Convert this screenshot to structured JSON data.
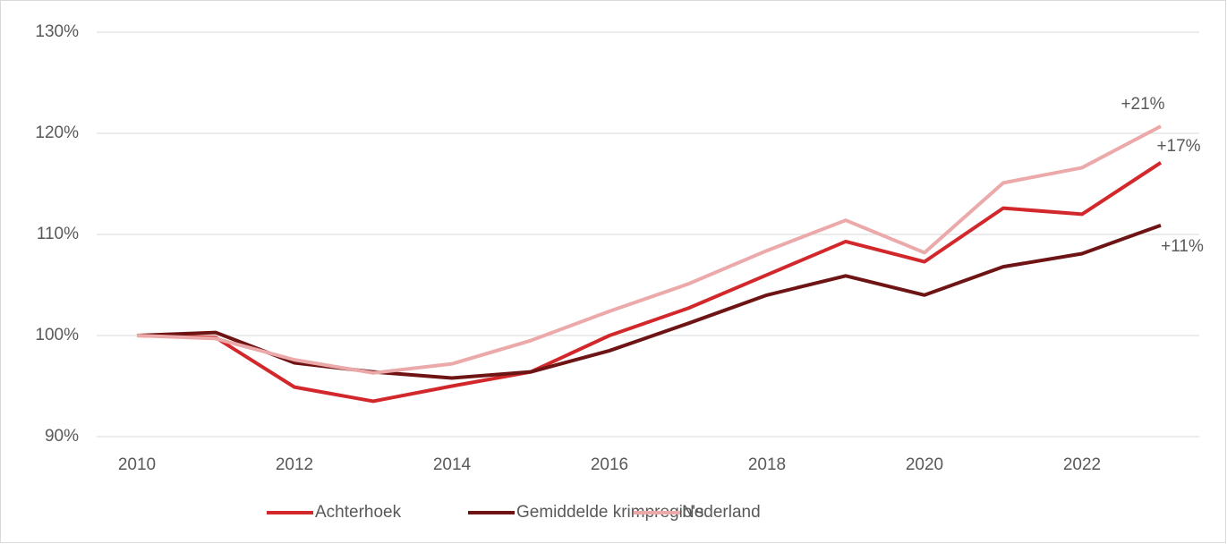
{
  "chart_data": {
    "type": "line",
    "x": [
      2010,
      2011,
      2012,
      2013,
      2014,
      2015,
      2016,
      2017,
      2018,
      2019,
      2020,
      2021,
      2022,
      2023
    ],
    "xlim": [
      2010,
      2023
    ],
    "xticks": [
      2010,
      2012,
      2014,
      2016,
      2018,
      2020,
      2022
    ],
    "ylim": [
      90,
      130
    ],
    "yticks": [
      {
        "value": 90,
        "label": "90%"
      },
      {
        "value": 100,
        "label": "100%"
      },
      {
        "value": 110,
        "label": "110%"
      },
      {
        "value": 120,
        "label": "120%"
      },
      {
        "value": 130,
        "label": "130%"
      }
    ],
    "grid": true,
    "legend": "bottom",
    "series": [
      {
        "name": "Achterhoek",
        "color": "#d2282c",
        "values": [
          100,
          99.8,
          94.9,
          93.5,
          95.0,
          96.4,
          100,
          102.7,
          106.0,
          109.3,
          107.3,
          112.6,
          112.0,
          117.1
        ],
        "end_label": "+17%"
      },
      {
        "name": "Gemiddelde krimpregio's",
        "color": "#6e1414",
        "values": [
          100,
          100.3,
          97.3,
          96.4,
          95.8,
          96.4,
          98.5,
          101.2,
          104.0,
          105.9,
          104.0,
          106.8,
          108.1,
          110.9
        ],
        "end_label": "+11%"
      },
      {
        "name": "Nederland",
        "color": "#eba9aa",
        "values": [
          100,
          99.7,
          97.6,
          96.3,
          97.2,
          99.5,
          102.4,
          105.1,
          108.4,
          111.4,
          108.2,
          115.1,
          116.6,
          120.7
        ],
        "end_label": "+21%"
      }
    ]
  }
}
